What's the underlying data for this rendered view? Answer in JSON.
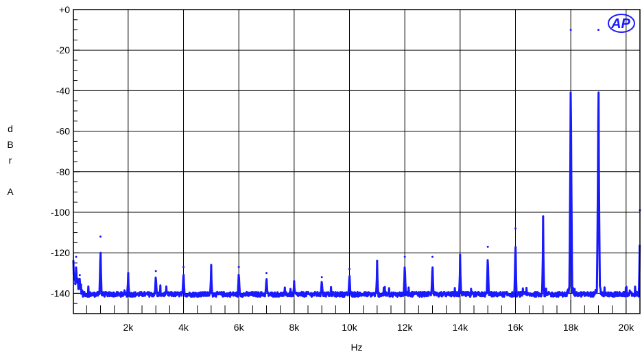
{
  "chart_data": {
    "type": "line",
    "title": "",
    "xlabel": "Hz",
    "ylabel": "dBr A",
    "ylabel_chars": [
      "d",
      "B",
      "r",
      "",
      "A"
    ],
    "logo": "AP",
    "xlim": [
      20,
      20500
    ],
    "ylim": [
      -150,
      0
    ],
    "grid": true,
    "x_ticks": [
      2000,
      4000,
      6000,
      8000,
      10000,
      12000,
      14000,
      16000,
      18000,
      20000
    ],
    "x_tick_labels": [
      "2k",
      "4k",
      "6k",
      "8k",
      "10k",
      "12k",
      "14k",
      "16k",
      "18k",
      "20k"
    ],
    "y_ticks": [
      0,
      -20,
      -40,
      -60,
      -80,
      -100,
      -120,
      -140
    ],
    "y_tick_labels": [
      "+0",
      "-20",
      "-40",
      "-60",
      "-80",
      "-100",
      "-120",
      "-140"
    ],
    "line_color": "#1a1aff",
    "noise_floor_db": -140.5,
    "series": [
      {
        "name": "",
        "peaks": [
          {
            "x": 20,
            "y": -124
          },
          {
            "x": 120,
            "y": -122
          },
          {
            "x": 250,
            "y": -131
          },
          {
            "x": 1000,
            "y": -112
          },
          {
            "x": 2000,
            "y": -130
          },
          {
            "x": 3000,
            "y": -129
          },
          {
            "x": 4000,
            "y": -127
          },
          {
            "x": 5000,
            "y": -126
          },
          {
            "x": 6000,
            "y": -127
          },
          {
            "x": 7000,
            "y": -130
          },
          {
            "x": 8000,
            "y": -134
          },
          {
            "x": 9000,
            "y": -132
          },
          {
            "x": 10000,
            "y": -128
          },
          {
            "x": 11000,
            "y": -124
          },
          {
            "x": 12000,
            "y": -122
          },
          {
            "x": 13000,
            "y": -122
          },
          {
            "x": 14000,
            "y": -121
          },
          {
            "x": 15000,
            "y": -117
          },
          {
            "x": 16000,
            "y": -108
          },
          {
            "x": 17000,
            "y": -102
          },
          {
            "x": 18000,
            "y": -10
          },
          {
            "x": 19000,
            "y": -10
          },
          {
            "x": 20500,
            "y": -99
          }
        ]
      }
    ]
  }
}
